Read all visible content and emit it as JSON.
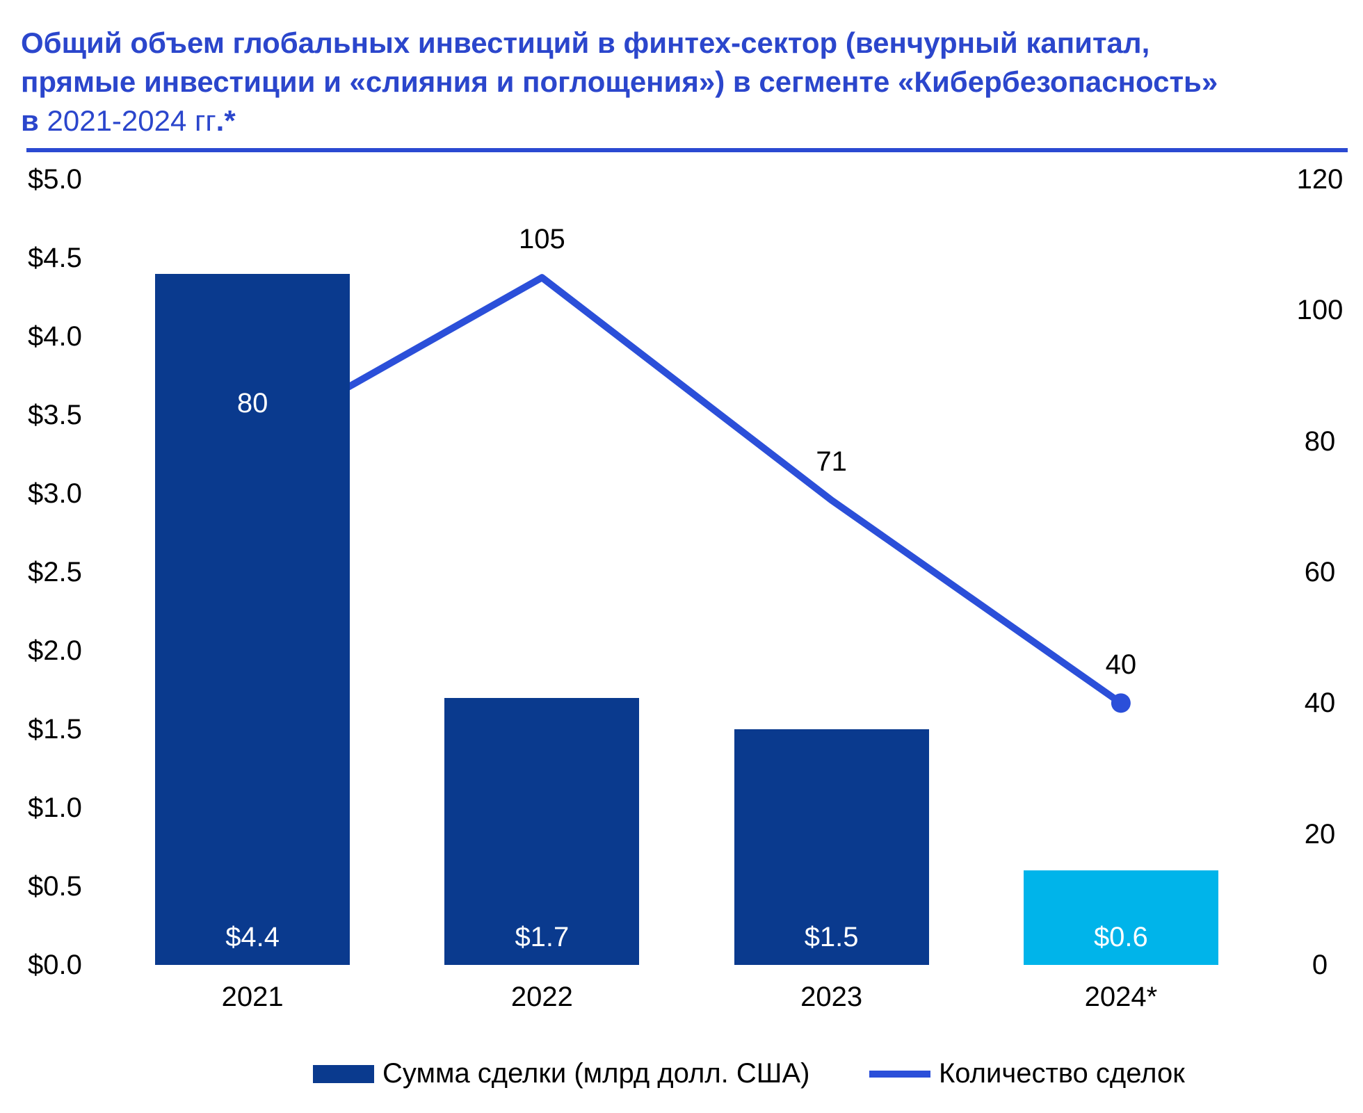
{
  "title": {
    "line1": "Общий объем глобальных инвестиций в финтех-сектор (венчурный капитал,",
    "line2": "прямые инвестиции и «слияния и поглощения») в сегменте «Кибербезопасность»",
    "line3_bold": "в",
    "line3_regular": " 2021-2024 гг",
    "line3_suffix": ".*"
  },
  "colors": {
    "title_blue": "#2b46cc",
    "divider_blue": "#2b4ad2",
    "bar_navy": "#0a3a8e",
    "bar_cyan": "#00b4ea",
    "line_blue": "#2b4fd9",
    "bar_label_text": "#ffffff",
    "axis_text": "#000000"
  },
  "chart_data": {
    "type": "bar+line",
    "categories": [
      "2021",
      "2022",
      "2023",
      "2024*"
    ],
    "series": [
      {
        "name": "Сумма сделки (млрд долл. США)",
        "type": "bar",
        "axis": "left",
        "values": [
          4.4,
          1.7,
          1.5,
          0.6
        ],
        "labels": [
          "$4.4",
          "$1.7",
          "$1.5",
          "$0.6"
        ],
        "bar_colors": [
          "#0a3a8e",
          "#0a3a8e",
          "#0a3a8e",
          "#00b4ea"
        ]
      },
      {
        "name": "Количество сделок",
        "type": "line",
        "axis": "right",
        "values": [
          80,
          105,
          71,
          40
        ],
        "labels": [
          "80",
          "105",
          "71",
          "40"
        ],
        "label_colors": [
          "#ffffff",
          "#000000",
          "#000000",
          "#000000"
        ],
        "end_marker": true
      }
    ],
    "left_axis": {
      "min": 0,
      "max": 5,
      "ticks": [
        {
          "label": "$5.0",
          "value": 5.0
        },
        {
          "label": "$4.5",
          "value": 4.5
        },
        {
          "label": "$4.0",
          "value": 4.0
        },
        {
          "label": "$3.5",
          "value": 3.5
        },
        {
          "label": "$3.0",
          "value": 3.0
        },
        {
          "label": "$2.5",
          "value": 2.5
        },
        {
          "label": "$2.0",
          "value": 2.0
        },
        {
          "label": "$1.5",
          "value": 1.5
        },
        {
          "label": "$1.0",
          "value": 1.0
        },
        {
          "label": "$0.5",
          "value": 0.5
        },
        {
          "label": "$0.0",
          "value": 0.0
        }
      ]
    },
    "right_axis": {
      "min": 0,
      "max": 120,
      "ticks": [
        {
          "label": "120",
          "value": 120
        },
        {
          "label": "100",
          "value": 100
        },
        {
          "label": "80",
          "value": 80
        },
        {
          "label": "60",
          "value": 60
        },
        {
          "label": "40",
          "value": 40
        },
        {
          "label": "20",
          "value": 20
        },
        {
          "label": "0",
          "value": 0
        }
      ]
    },
    "grid": false,
    "legend_position": "bottom"
  },
  "legend": {
    "bars_label": "Сумма сделки (млрд долл. США)",
    "line_label": "Количество сделок"
  }
}
